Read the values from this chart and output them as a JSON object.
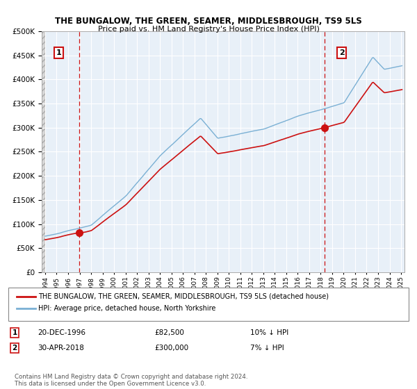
{
  "title": "THE BUNGALOW, THE GREEN, SEAMER, MIDDLESBROUGH, TS9 5LS",
  "subtitle": "Price paid vs. HM Land Registry's House Price Index (HPI)",
  "ylim": [
    0,
    500000
  ],
  "yticks": [
    0,
    50000,
    100000,
    150000,
    200000,
    250000,
    300000,
    350000,
    400000,
    450000,
    500000
  ],
  "xlim_start": 1993.7,
  "xlim_end": 2025.3,
  "sale1_year": 1996.97,
  "sale1_price": 82500,
  "sale2_year": 2018.33,
  "sale2_price": 300000,
  "legend_line1": "THE BUNGALOW, THE GREEN, SEAMER, MIDDLESBROUGH, TS9 5LS (detached house)",
  "legend_line2": "HPI: Average price, detached house, North Yorkshire",
  "sale1_date": "20-DEC-1996",
  "sale1_amount": "£82,500",
  "sale1_pct": "10% ↓ HPI",
  "sale2_date": "30-APR-2018",
  "sale2_amount": "£300,000",
  "sale2_pct": "7% ↓ HPI",
  "footer": "Contains HM Land Registry data © Crown copyright and database right 2024.\nThis data is licensed under the Open Government Licence v3.0.",
  "hpi_color": "#7ab0d4",
  "price_color": "#cc1111",
  "chart_bg": "#e8f0f8",
  "grid_color": "#ffffff",
  "hatch_color": "#c8c8c8"
}
